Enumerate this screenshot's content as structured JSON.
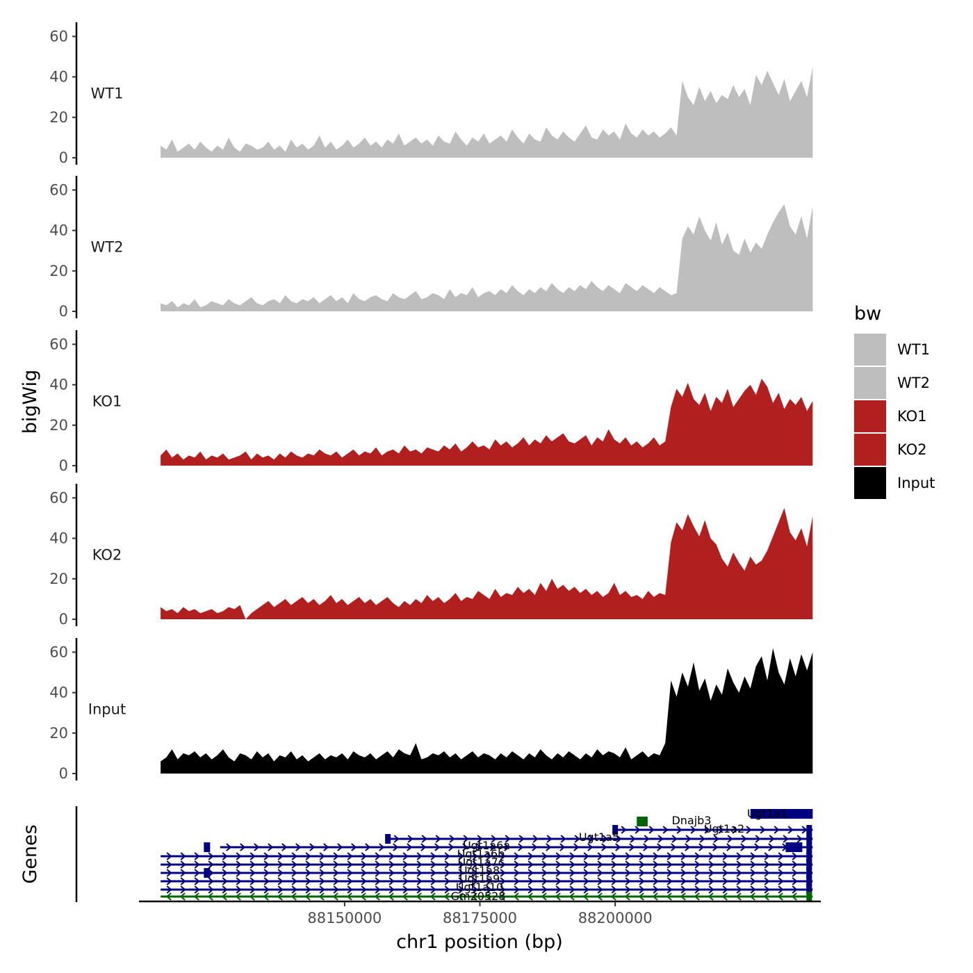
{
  "chart_data": {
    "type": "area",
    "ylabel": "bigWig",
    "xlabel": "chr1 position (bp)",
    "genes_track_label": "Genes",
    "xlim": [
      88112000,
      88238000
    ],
    "data_range": [
      88116000,
      88236500
    ],
    "x_ticks": [
      {
        "value": 88150000,
        "label": "88150000"
      },
      {
        "value": 88175000,
        "label": "88175000"
      },
      {
        "value": 88200000,
        "label": "88200000"
      }
    ],
    "ylim": [
      0,
      67
    ],
    "y_ticks": [
      {
        "value": 0,
        "label": "0"
      },
      {
        "value": 20,
        "label": "20"
      },
      {
        "value": 40,
        "label": "40"
      },
      {
        "value": 60,
        "label": "60"
      }
    ],
    "legend": {
      "title": "bw",
      "entries": [
        {
          "label": "WT1",
          "color": "#bebebe"
        },
        {
          "label": "WT2",
          "color": "#bebebe"
        },
        {
          "label": "KO1",
          "color": "#b21f1f"
        },
        {
          "label": "KO2",
          "color": "#b21f1f"
        },
        {
          "label": "Input",
          "color": "#000000"
        }
      ]
    },
    "series": [
      {
        "name": "WT1",
        "color": "#bebebe",
        "values": [
          6,
          4,
          9,
          3,
          5,
          7,
          4,
          8,
          5,
          3,
          6,
          4,
          10,
          5,
          3,
          7,
          6,
          4,
          5,
          8,
          4,
          6,
          3,
          9,
          5,
          7,
          4,
          6,
          11,
          5,
          8,
          4,
          6,
          9,
          5,
          7,
          10,
          6,
          8,
          5,
          9,
          7,
          12,
          6,
          8,
          10,
          7,
          9,
          6,
          11,
          8,
          7,
          13,
          9,
          6,
          10,
          8,
          12,
          7,
          9,
          11,
          8,
          14,
          10,
          7,
          12,
          9,
          8,
          15,
          11,
          9,
          13,
          10,
          8,
          12,
          16,
          10,
          9,
          14,
          11,
          13,
          9,
          17,
          12,
          10,
          14,
          11,
          13,
          10,
          12,
          15,
          11,
          38,
          30,
          26,
          35,
          28,
          33,
          27,
          31,
          29,
          36,
          30,
          34,
          26,
          41,
          36,
          43,
          37,
          31,
          39,
          28,
          33,
          38,
          30,
          45
        ]
      },
      {
        "name": "WT2",
        "color": "#bebebe",
        "values": [
          4,
          3,
          5,
          2,
          4,
          3,
          6,
          2,
          3,
          5,
          4,
          3,
          6,
          4,
          3,
          5,
          7,
          4,
          3,
          5,
          6,
          4,
          8,
          5,
          4,
          6,
          5,
          7,
          4,
          6,
          8,
          5,
          7,
          4,
          9,
          6,
          5,
          7,
          8,
          6,
          5,
          9,
          7,
          6,
          8,
          10,
          6,
          7,
          9,
          8,
          6,
          11,
          7,
          9,
          8,
          12,
          7,
          9,
          10,
          8,
          11,
          9,
          13,
          10,
          8,
          11,
          9,
          12,
          10,
          14,
          11,
          9,
          12,
          10,
          13,
          11,
          15,
          12,
          10,
          13,
          11,
          9,
          14,
          12,
          10,
          13,
          11,
          9,
          12,
          10,
          8,
          9,
          36,
          42,
          38,
          47,
          40,
          35,
          44,
          33,
          39,
          30,
          28,
          36,
          29,
          34,
          31,
          38,
          44,
          49,
          53,
          42,
          38,
          47,
          36,
          52
        ]
      },
      {
        "name": "KO1",
        "color": "#b21f1f",
        "values": [
          5,
          8,
          4,
          6,
          3,
          5,
          4,
          7,
          3,
          5,
          4,
          6,
          3,
          4,
          5,
          7,
          3,
          6,
          4,
          5,
          3,
          6,
          4,
          7,
          5,
          4,
          6,
          5,
          8,
          6,
          5,
          7,
          4,
          6,
          8,
          5,
          7,
          6,
          9,
          5,
          7,
          8,
          6,
          10,
          7,
          8,
          6,
          9,
          8,
          7,
          10,
          8,
          11,
          7,
          9,
          12,
          9,
          10,
          8,
          13,
          10,
          12,
          9,
          11,
          14,
          10,
          13,
          11,
          15,
          12,
          14,
          16,
          12,
          11,
          13,
          15,
          10,
          14,
          12,
          18,
          13,
          11,
          14,
          10,
          12,
          9,
          11,
          14,
          10,
          12,
          29,
          38,
          34,
          41,
          33,
          30,
          36,
          27,
          34,
          31,
          38,
          29,
          33,
          37,
          40,
          35,
          43,
          39,
          31,
          36,
          28,
          33,
          30,
          34,
          27,
          32
        ]
      },
      {
        "name": "KO2",
        "color": "#b21f1f",
        "values": [
          6,
          4,
          5,
          3,
          6,
          4,
          5,
          3,
          4,
          5,
          3,
          4,
          6,
          5,
          7,
          0,
          3,
          5,
          7,
          9,
          6,
          8,
          10,
          7,
          9,
          11,
          8,
          10,
          7,
          9,
          12,
          8,
          10,
          7,
          9,
          11,
          8,
          10,
          7,
          9,
          11,
          8,
          6,
          9,
          7,
          10,
          8,
          12,
          9,
          11,
          8,
          10,
          13,
          9,
          11,
          10,
          14,
          12,
          10,
          15,
          11,
          13,
          12,
          16,
          13,
          15,
          12,
          18,
          14,
          20,
          15,
          17,
          14,
          16,
          13,
          15,
          12,
          14,
          11,
          13,
          18,
          12,
          14,
          11,
          12,
          10,
          14,
          11,
          13,
          12,
          38,
          48,
          44,
          52,
          46,
          41,
          49,
          40,
          37,
          30,
          26,
          33,
          28,
          24,
          31,
          27,
          29,
          34,
          41,
          48,
          55,
          43,
          39,
          45,
          36,
          51
        ]
      },
      {
        "name": "Input",
        "color": "#000000",
        "values": [
          6,
          8,
          12,
          7,
          10,
          9,
          11,
          8,
          10,
          7,
          9,
          12,
          8,
          6,
          10,
          9,
          7,
          11,
          8,
          10,
          6,
          9,
          8,
          11,
          7,
          9,
          6,
          8,
          10,
          7,
          9,
          8,
          10,
          7,
          11,
          9,
          8,
          10,
          7,
          9,
          11,
          8,
          12,
          10,
          9,
          15,
          7,
          8,
          10,
          9,
          11,
          8,
          10,
          7,
          9,
          11,
          8,
          10,
          9,
          7,
          10,
          8,
          11,
          9,
          7,
          10,
          8,
          12,
          9,
          7,
          10,
          8,
          11,
          9,
          7,
          10,
          8,
          12,
          9,
          11,
          10,
          8,
          13,
          7,
          9,
          11,
          8,
          10,
          9,
          15,
          46,
          38,
          50,
          43,
          55,
          41,
          47,
          36,
          44,
          39,
          52,
          45,
          40,
          48,
          42,
          53,
          58,
          46,
          62,
          50,
          44,
          57,
          48,
          59,
          51,
          60
        ]
      }
    ],
    "genes": [
      {
        "name": "Ugt1a6a",
        "start": 88127000,
        "end": 88236500,
        "strand": "+",
        "color": "#000080"
      },
      {
        "name": "Ugt1a6b",
        "start": 88116000,
        "end": 88236500,
        "strand": "+",
        "color": "#000080"
      },
      {
        "name": "Ugt1a7c",
        "start": 88116000,
        "end": 88236500,
        "strand": "+",
        "color": "#000080"
      },
      {
        "name": "Ugt1a8",
        "start": 88116000,
        "end": 88236500,
        "strand": "+",
        "color": "#000080"
      },
      {
        "name": "Ugt1a9",
        "start": 88116000,
        "end": 88236500,
        "strand": "+",
        "color": "#000080"
      },
      {
        "name": "Ugt1a10",
        "start": 88116000,
        "end": 88236500,
        "strand": "+",
        "color": "#000080"
      },
      {
        "name": "Ugt1a5",
        "start": 88158000,
        "end": 88236500,
        "strand": "+",
        "color": "#000080"
      },
      {
        "name": "Ugt1a2",
        "start": 88200000,
        "end": 88236500,
        "strand": "+",
        "color": "#000080"
      },
      {
        "name": "Ugt1a1",
        "start": 88225000,
        "end": 88236500,
        "strand": "+",
        "color": "#000080"
      },
      {
        "name": "Dnajb3",
        "start": 88204000,
        "end": 88206000,
        "strand": "+",
        "color": "#006400"
      },
      {
        "name": "Gm20528",
        "start": 88116000,
        "end": 88236500,
        "strand": "-",
        "color": "#006400"
      }
    ]
  }
}
